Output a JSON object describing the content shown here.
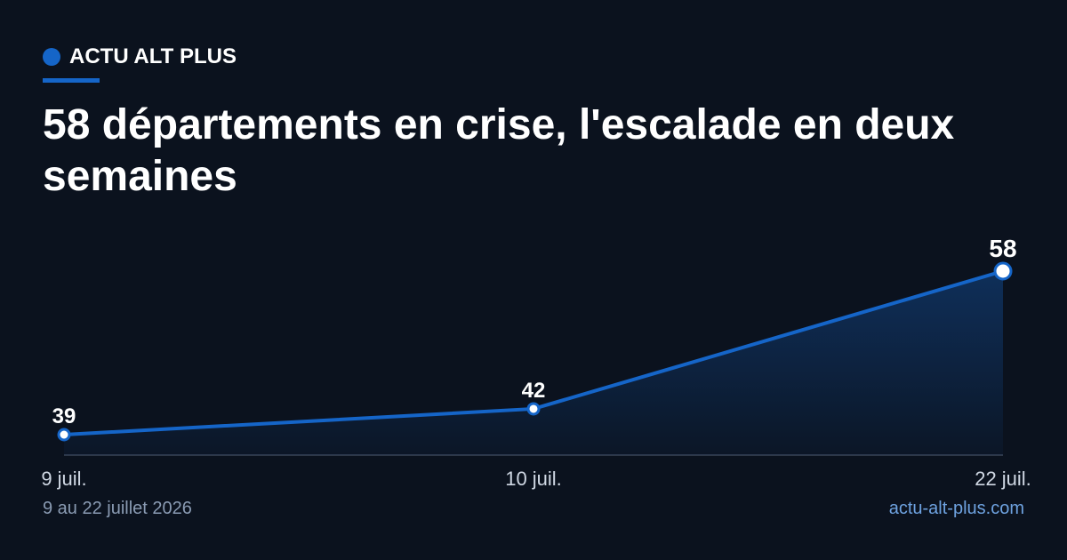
{
  "chart_data": {
    "type": "line",
    "kicker": "ACTU ALT PLUS",
    "title": "58 départements en crise, l'escalade en deux semaines",
    "subtitle": "9 au 22 juillet 2026",
    "source": "actu-alt-plus.com",
    "categories": [
      "9 juil.",
      "10 juil.",
      "22 juil."
    ],
    "values": [
      39,
      42,
      58
    ],
    "color": "#1565c8"
  }
}
